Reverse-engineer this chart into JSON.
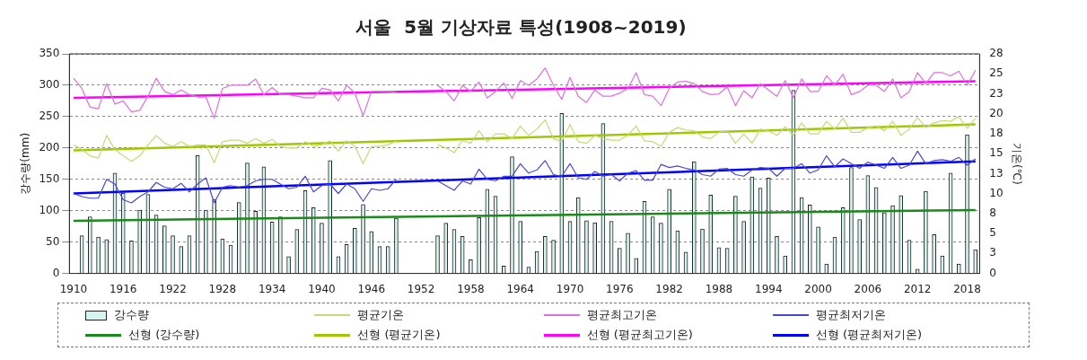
{
  "chart_data": {
    "type": "bar",
    "title": "서울  5월 기상자료 특성(1908~2019)",
    "ylabel": "강수량(mm)",
    "y2label": "기온(℃)",
    "x": [
      1910,
      1911,
      1912,
      1913,
      1914,
      1915,
      1916,
      1917,
      1918,
      1919,
      1920,
      1921,
      1922,
      1923,
      1924,
      1925,
      1926,
      1927,
      1928,
      1929,
      1930,
      1931,
      1932,
      1933,
      1934,
      1935,
      1936,
      1937,
      1938,
      1939,
      1940,
      1941,
      1942,
      1943,
      1944,
      1945,
      1946,
      1947,
      1948,
      1949,
      1950,
      1951,
      1952,
      1953,
      1954,
      1955,
      1956,
      1957,
      1958,
      1959,
      1960,
      1961,
      1962,
      1963,
      1964,
      1965,
      1966,
      1967,
      1968,
      1969,
      1970,
      1971,
      1972,
      1973,
      1974,
      1975,
      1976,
      1977,
      1978,
      1979,
      1980,
      1981,
      1982,
      1983,
      1984,
      1985,
      1986,
      1987,
      1988,
      1989,
      1990,
      1991,
      1992,
      1993,
      1994,
      1995,
      1996,
      1997,
      1998,
      1999,
      2000,
      2001,
      2002,
      2003,
      2004,
      2005,
      2006,
      2007,
      2008,
      2009,
      2010,
      2011,
      2012,
      2013,
      2014,
      2015,
      2016,
      2017,
      2018,
      2019
    ],
    "xlim": [
      1909.5,
      2019.5
    ],
    "xticks": [
      1910,
      1916,
      1922,
      1928,
      1934,
      1940,
      1946,
      1952,
      1958,
      1964,
      1970,
      1976,
      1982,
      1988,
      1994,
      2000,
      2006,
      2012,
      2018
    ],
    "ylim": [
      0,
      350
    ],
    "yticks": [
      0,
      50,
      100,
      150,
      200,
      250,
      300,
      350
    ],
    "y2lim": [
      0,
      28
    ],
    "y2ticks": [
      {
        "value": 0,
        "label": "0"
      },
      {
        "value": 2.545,
        "label": "3"
      },
      {
        "value": 5.091,
        "label": "5"
      },
      {
        "value": 7.636,
        "label": "8"
      },
      {
        "value": 10.182,
        "label": "10"
      },
      {
        "value": 12.727,
        "label": "13"
      },
      {
        "value": 15.273,
        "label": "15"
      },
      {
        "value": 17.818,
        "label": "18"
      },
      {
        "value": 20.364,
        "label": "20"
      },
      {
        "value": 22.909,
        "label": "23"
      },
      {
        "value": 25.455,
        "label": "25"
      },
      {
        "value": 28,
        "label": "28"
      }
    ],
    "grid": "y",
    "legend": "bottom",
    "marker": "none",
    "series": [
      {
        "name": "강수량",
        "color": "#d6f4ef",
        "values": [
          null,
          60,
          90,
          58,
          54,
          160,
          128,
          52,
          101,
          126,
          93,
          76,
          60,
          43,
          60,
          188,
          101,
          118,
          55,
          45,
          113,
          176,
          99,
          170,
          82,
          90,
          27,
          70,
          132,
          105,
          80,
          180,
          27,
          46,
          72,
          110,
          67,
          43,
          43,
          88,
          null,
          null,
          null,
          null,
          60,
          80,
          70,
          59,
          22,
          89,
          134,
          123,
          12,
          186,
          83,
          10,
          35,
          59,
          53,
          255,
          83,
          121,
          84,
          81,
          239,
          83,
          40,
          64,
          24,
          115,
          90,
          80,
          134,
          68,
          34,
          178,
          71,
          125,
          41,
          40,
          123,
          83,
          154,
          136,
          152,
          59,
          28,
          292,
          121,
          109,
          74,
          15,
          58,
          105,
          169,
          86,
          156,
          137,
          97,
          108,
          124,
          53,
          7,
          131,
          62,
          28,
          160,
          15,
          221,
          38
        ]
      },
      {
        "name": "평균기온",
        "type": "line",
        "axis": "y2",
        "color": "#c2dc78",
        "values": [
          16.4,
          15.8,
          15.0,
          14.7,
          17.6,
          15.8,
          15.0,
          14.3,
          15.0,
          16.4,
          17.6,
          16.6,
          16.2,
          16.8,
          16.2,
          16.4,
          16.4,
          14.1,
          16.8,
          17.0,
          17.0,
          16.6,
          17.2,
          16.6,
          17.1,
          16.2,
          16.0,
          16.0,
          16.8,
          16.2,
          16.4,
          16.9,
          15.6,
          16.9,
          16.2,
          14.0,
          16.2,
          16.2,
          16.4,
          16.9,
          null,
          null,
          null,
          null,
          16.4,
          16.0,
          15.4,
          17.0,
          16.6,
          18.2,
          16.8,
          17.8,
          17.8,
          17.2,
          18.8,
          17.6,
          18.4,
          19.6,
          17.2,
          16.8,
          19.0,
          16.8,
          16.6,
          17.6,
          17.2,
          17.0,
          17.0,
          17.6,
          18.8,
          16.9,
          16.8,
          16.2,
          18.0,
          18.6,
          18.3,
          18.2,
          17.4,
          17.2,
          18.0,
          18.2,
          16.6,
          17.8,
          16.6,
          18.4,
          18.2,
          17.6,
          18.7,
          17.6,
          19.2,
          17.8,
          17.8,
          19.4,
          18.4,
          19.8,
          18.0,
          18.0,
          18.6,
          18.8,
          18.2,
          19.4,
          17.6,
          18.4,
          19.9,
          18.6,
          19.2,
          19.5,
          19.4,
          20.0,
          18.5,
          19.8
        ]
      },
      {
        "name": "평균최고기온",
        "type": "line",
        "axis": "y2",
        "color": "#e070e0",
        "values": [
          24.9,
          23.6,
          21.2,
          21.0,
          24.2,
          21.6,
          22.0,
          20.6,
          20.8,
          22.6,
          24.9,
          23.2,
          22.8,
          23.4,
          22.8,
          22.5,
          22.5,
          19.8,
          23.6,
          24.0,
          24.0,
          24.0,
          24.8,
          22.8,
          23.7,
          22.8,
          22.8,
          22.6,
          22.4,
          22.4,
          23.6,
          23.4,
          22.0,
          24.0,
          23.0,
          20.1,
          23.2,
          23.2,
          23.2,
          23.1,
          null,
          null,
          null,
          null,
          24.0,
          23.2,
          22.0,
          24.0,
          23.2,
          24.4,
          22.4,
          23.2,
          24.3,
          22.3,
          24.6,
          24.0,
          24.8,
          26.2,
          24.0,
          22.2,
          25.0,
          22.6,
          21.8,
          23.4,
          22.6,
          22.6,
          23.0,
          23.6,
          25.6,
          22.8,
          22.6,
          21.4,
          23.6,
          24.4,
          24.5,
          24.2,
          23.2,
          22.8,
          22.9,
          23.8,
          21.4,
          23.3,
          22.4,
          24.2,
          23.4,
          22.6,
          24.6,
          22.4,
          24.8,
          23.2,
          23.2,
          25.2,
          24.0,
          25.4,
          22.8,
          23.2,
          24.0,
          24.0,
          23.2,
          24.8,
          22.4,
          23.2,
          25.6,
          24.2,
          25.6,
          25.6,
          25.2,
          25.8,
          24.0,
          25.9
        ]
      },
      {
        "name": "평균최저기온",
        "type": "line",
        "axis": "y2",
        "color": "#4848d8",
        "values": [
          10.2,
          9.8,
          9.6,
          9.6,
          12.0,
          11.4,
          9.4,
          9.0,
          9.8,
          10.4,
          11.6,
          11.0,
          10.8,
          11.5,
          10.4,
          11.4,
          12.2,
          9.0,
          11.0,
          11.2,
          11.0,
          11.2,
          11.8,
          12.0,
          12.0,
          11.4,
          10.8,
          11.0,
          12.4,
          10.4,
          11.2,
          11.4,
          10.2,
          11.4,
          10.8,
          9.2,
          10.8,
          10.6,
          10.8,
          12.0,
          null,
          null,
          null,
          null,
          11.8,
          11.2,
          10.6,
          11.8,
          11.4,
          13.3,
          12.0,
          11.8,
          12.4,
          12.4,
          14.0,
          12.8,
          13.2,
          14.4,
          12.6,
          12.4,
          14.0,
          12.2,
          12.0,
          13.0,
          12.4,
          12.6,
          11.8,
          12.8,
          13.1,
          11.9,
          11.9,
          13.9,
          13.5,
          13.7,
          13.4,
          13.2,
          12.6,
          12.4,
          13.3,
          13.4,
          12.6,
          12.4,
          13.2,
          13.5,
          13.4,
          12.4,
          13.4,
          13.4,
          14.0,
          12.8,
          13.2,
          15.0,
          13.6,
          14.6,
          14.0,
          13.4,
          14.2,
          13.8,
          13.4,
          14.8,
          13.4,
          13.8,
          15.6,
          14.0,
          14.4,
          14.5,
          14.3,
          14.8,
          13.8,
          14.6
        ]
      },
      {
        "name": "선형 (강수량)",
        "type": "line",
        "color": "#1a8a1a",
        "values": [
          84,
          null,
          null,
          null,
          null,
          null,
          null,
          null,
          null,
          null,
          null,
          null,
          null,
          null,
          null,
          null,
          null,
          null,
          null,
          null,
          null,
          null,
          null,
          null,
          null,
          null,
          null,
          null,
          null,
          null,
          null,
          null,
          null,
          null,
          null,
          null,
          null,
          null,
          null,
          null,
          null,
          null,
          null,
          null,
          null,
          null,
          null,
          null,
          null,
          null,
          null,
          null,
          null,
          null,
          null,
          null,
          null,
          null,
          null,
          null,
          null,
          null,
          null,
          null,
          null,
          null,
          null,
          null,
          null,
          null,
          null,
          null,
          null,
          null,
          null,
          null,
          null,
          null,
          null,
          null,
          null,
          null,
          null,
          null,
          null,
          null,
          null,
          null,
          null,
          null,
          null,
          null,
          null,
          null,
          null,
          null,
          null,
          null,
          null,
          null,
          null,
          null,
          null,
          null,
          null,
          null,
          null,
          null,
          null,
          101
        ]
      },
      {
        "name": "선형 (평균기온)",
        "type": "line",
        "axis": "y2",
        "color": "#a0c800",
        "values": [
          15.7,
          null,
          null,
          null,
          null,
          null,
          null,
          null,
          null,
          null,
          null,
          null,
          null,
          null,
          null,
          null,
          null,
          null,
          null,
          null,
          null,
          null,
          null,
          null,
          null,
          null,
          null,
          null,
          null,
          null,
          null,
          null,
          null,
          null,
          null,
          null,
          null,
          null,
          null,
          null,
          null,
          null,
          null,
          null,
          null,
          null,
          null,
          null,
          null,
          null,
          null,
          null,
          null,
          null,
          null,
          null,
          null,
          null,
          null,
          null,
          null,
          null,
          null,
          null,
          null,
          null,
          null,
          null,
          null,
          null,
          null,
          null,
          null,
          null,
          null,
          null,
          null,
          null,
          null,
          null,
          null,
          null,
          null,
          null,
          null,
          null,
          null,
          null,
          null,
          null,
          null,
          null,
          null,
          null,
          null,
          null,
          null,
          null,
          null,
          null,
          null,
          null,
          null,
          null,
          null,
          null,
          null,
          null,
          null,
          19.0
        ]
      },
      {
        "name": "선형 (평균최고기온)",
        "type": "line",
        "axis": "y2",
        "color": "#ff00ff",
        "values": [
          22.4,
          null,
          null,
          null,
          null,
          null,
          null,
          null,
          null,
          null,
          null,
          null,
          null,
          null,
          null,
          null,
          null,
          null,
          null,
          null,
          null,
          null,
          null,
          null,
          null,
          null,
          null,
          null,
          null,
          null,
          null,
          null,
          null,
          null,
          null,
          null,
          null,
          null,
          null,
          null,
          null,
          null,
          null,
          null,
          null,
          null,
          null,
          null,
          null,
          null,
          null,
          null,
          null,
          null,
          null,
          null,
          null,
          null,
          null,
          null,
          null,
          null,
          null,
          null,
          null,
          null,
          null,
          null,
          null,
          null,
          null,
          null,
          null,
          null,
          null,
          null,
          null,
          null,
          null,
          null,
          null,
          null,
          null,
          null,
          null,
          null,
          null,
          null,
          null,
          null,
          null,
          null,
          null,
          null,
          null,
          null,
          null,
          null,
          null,
          null,
          null,
          null,
          null,
          null,
          null,
          null,
          null,
          null,
          null,
          24.5
        ]
      },
      {
        "name": "선형 (평균최저기온)",
        "type": "line",
        "axis": "y2",
        "color": "#0000ff",
        "values": [
          10.2,
          null,
          null,
          null,
          null,
          null,
          null,
          null,
          null,
          null,
          null,
          null,
          null,
          null,
          null,
          null,
          null,
          null,
          null,
          null,
          null,
          null,
          null,
          null,
          null,
          null,
          null,
          null,
          null,
          null,
          null,
          null,
          null,
          null,
          null,
          null,
          null,
          null,
          null,
          null,
          null,
          null,
          null,
          null,
          null,
          null,
          null,
          null,
          null,
          null,
          null,
          null,
          null,
          null,
          null,
          null,
          null,
          null,
          null,
          null,
          null,
          null,
          null,
          null,
          null,
          null,
          null,
          null,
          null,
          null,
          null,
          null,
          null,
          null,
          null,
          null,
          null,
          null,
          null,
          null,
          null,
          null,
          null,
          null,
          null,
          null,
          null,
          null,
          null,
          null,
          null,
          null,
          null,
          null,
          null,
          null,
          null,
          null,
          null,
          null,
          null,
          null,
          null,
          null,
          null,
          null,
          null,
          null,
          null,
          14.3
        ]
      }
    ]
  }
}
